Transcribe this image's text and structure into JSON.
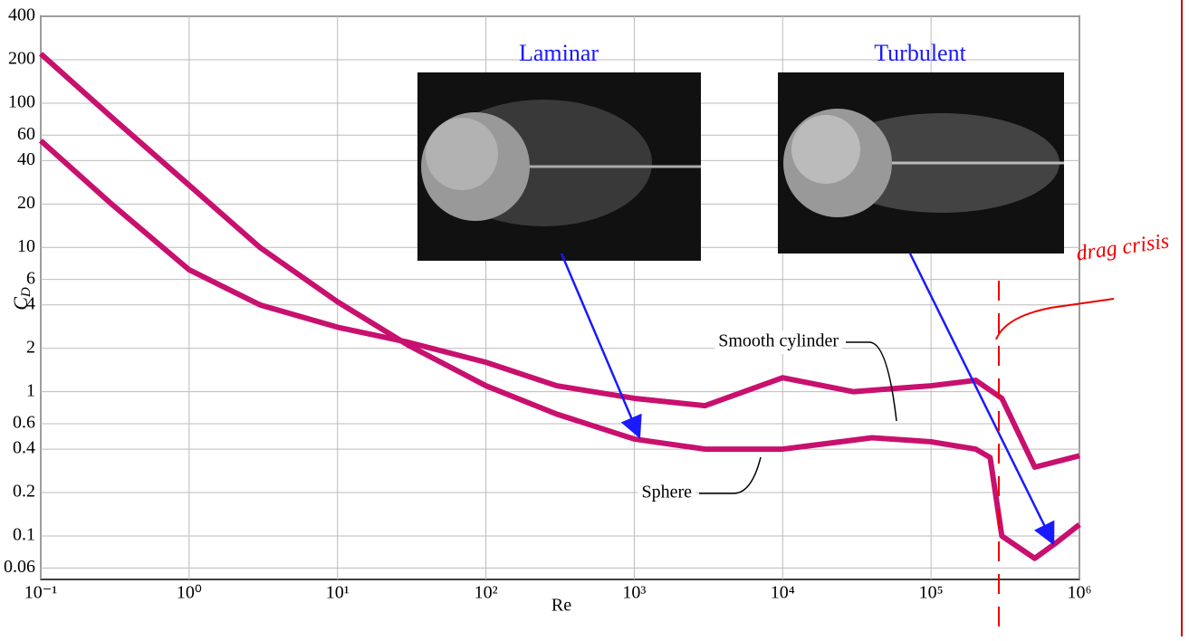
{
  "chart_data": {
    "type": "line",
    "x_label": "Re",
    "y_label": "C",
    "y_label_sub": "D",
    "log_x": true,
    "log_y": true,
    "grid": true,
    "xlim": [
      0.1,
      1000000
    ],
    "ylim": [
      0.05,
      400
    ],
    "xticks": [
      {
        "value": 0.1,
        "label": "10⁻¹"
      },
      {
        "value": 1,
        "label": "10⁰"
      },
      {
        "value": 10,
        "label": "10¹"
      },
      {
        "value": 100,
        "label": "10²"
      },
      {
        "value": 1000,
        "label": "10³"
      },
      {
        "value": 10000,
        "label": "10⁴"
      },
      {
        "value": 100000,
        "label": "10⁵"
      },
      {
        "value": 1000000,
        "label": "10⁶"
      }
    ],
    "yticks": [
      0.06,
      0.1,
      0.2,
      0.4,
      0.6,
      1,
      2,
      4,
      6,
      10,
      20,
      40,
      60,
      100,
      200,
      400
    ],
    "series": [
      {
        "name": "Sphere",
        "color": "#c8106e",
        "x": [
          0.1,
          0.3,
          1,
          3,
          10,
          30,
          100,
          300,
          1000,
          3000,
          10000,
          40000,
          100000,
          200000,
          250000,
          300000,
          500000,
          700000,
          1000000
        ],
        "values": [
          220,
          80,
          27,
          10,
          4.2,
          2.1,
          1.1,
          0.7,
          0.47,
          0.4,
          0.4,
          0.48,
          0.45,
          0.4,
          0.35,
          0.1,
          0.07,
          0.09,
          0.12
        ]
      },
      {
        "name": "Smooth cylinder",
        "color": "#c8106e",
        "x": [
          0.1,
          0.3,
          1,
          3,
          10,
          30,
          100,
          300,
          1000,
          3000,
          10000,
          30000,
          100000,
          200000,
          300000,
          500000,
          1000000
        ],
        "values": [
          55,
          20,
          7,
          4,
          2.8,
          2.2,
          1.6,
          1.1,
          0.9,
          0.8,
          1.25,
          1.0,
          1.1,
          1.2,
          0.9,
          0.3,
          0.36
        ]
      }
    ],
    "annotations": [
      "Laminar",
      "Turbulent",
      "drag crisis"
    ]
  }
}
